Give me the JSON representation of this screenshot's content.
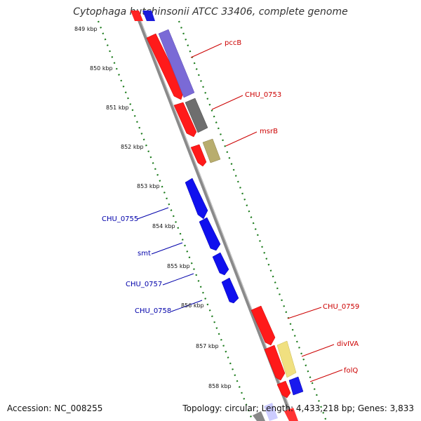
{
  "title": "Cytophaga hutchinsonii ATCC 33406, complete genome",
  "footer": {
    "accession": "Accession: NC_008255",
    "summary": "Topology: circular; Length: 4,433,218 bp; Genes: 3,833"
  },
  "colors": {
    "backbone": "#8a8a8a",
    "forward_label": "#cc0000",
    "reverse_label": "#0000aa",
    "tick_marks": "#1a7a1a"
  },
  "ticks": [
    "849 kbp",
    "850 kbp",
    "851 kbp",
    "852 kbp",
    "853 kbp",
    "854 kbp",
    "855 kbp",
    "856 kbp",
    "857 kbp",
    "858 kbp"
  ],
  "labels_forward": [
    "pccB",
    "CHU_0753",
    "msrB",
    "CHU_0759",
    "divIVA",
    "folQ"
  ],
  "labels_reverse": [
    "CHU_0755",
    "smt",
    "CHU_0757",
    "CHU_0758"
  ]
}
